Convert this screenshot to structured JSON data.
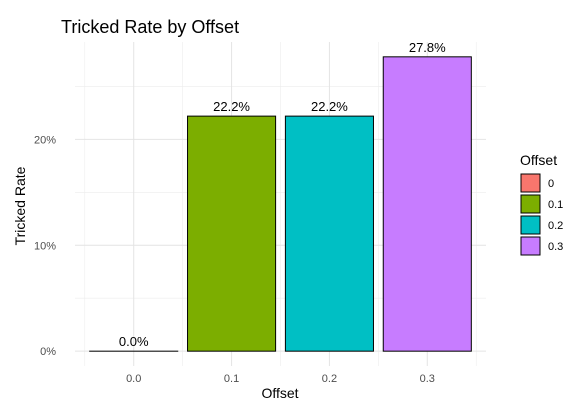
{
  "chart_data": {
    "type": "bar",
    "title": "Tricked Rate by Offset",
    "xlabel": "Offset",
    "ylabel": "Tricked Rate",
    "categories": [
      "0.0",
      "0.1",
      "0.2",
      "0.3"
    ],
    "values": [
      0.0,
      22.2,
      22.2,
      27.8
    ],
    "value_labels": [
      "0.0%",
      "22.2%",
      "22.2%",
      "27.8%"
    ],
    "y_ticks": [
      0,
      10,
      20
    ],
    "y_tick_labels": [
      "0%",
      "10%",
      "20%"
    ],
    "ylim": [
      -1.4,
      29.2
    ],
    "bar_colors": [
      "#F8766D",
      "#7CAE00",
      "#00BFC4",
      "#C77CFF"
    ],
    "grid": true,
    "legend": {
      "title": "Offset",
      "position": "right",
      "entries": [
        {
          "label": "0",
          "color": "#F8766D"
        },
        {
          "label": "0.1",
          "color": "#7CAE00"
        },
        {
          "label": "0.2",
          "color": "#00BFC4"
        },
        {
          "label": "0.3",
          "color": "#C77CFF"
        }
      ]
    }
  }
}
